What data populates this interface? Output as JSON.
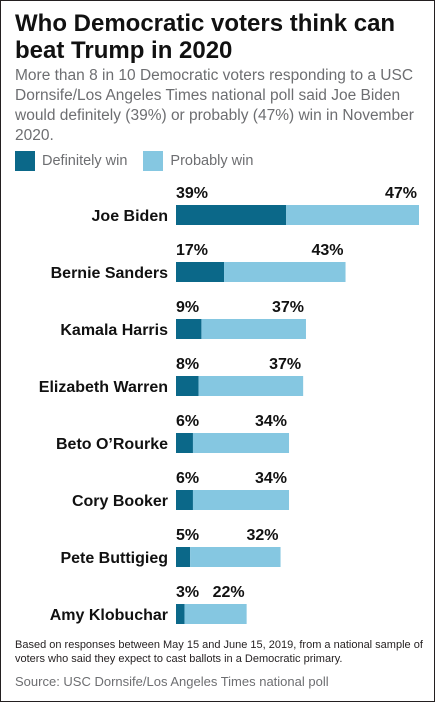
{
  "title": "Who Democratic voters think can beat Trump in 2020",
  "subtitle": "More than 8 in 10 Democratic voters responding to a USC Dornsife/Los Angeles Times national poll said Joe Biden would definitely (39%) or probably (47%) win in November 2020.",
  "colors": {
    "definitely": "#0b6889",
    "probably": "#85c7e1"
  },
  "chart_data": {
    "type": "bar",
    "orientation": "horizontal",
    "stacked": true,
    "categories": [
      "Joe Biden",
      "Bernie Sanders",
      "Kamala Harris",
      "Elizabeth Warren",
      "Beto O’Rourke",
      "Cory Booker",
      "Pete Buttigieg",
      "Amy Klobuchar"
    ],
    "series": [
      {
        "name": "Definitely win",
        "values": [
          39,
          17,
          9,
          8,
          6,
          6,
          5,
          3
        ],
        "labels": [
          "39%",
          "17%",
          "9%",
          "8%",
          "6%",
          "6%",
          "5%",
          "3%"
        ]
      },
      {
        "name": "Probably win",
        "values": [
          47,
          43,
          37,
          37,
          34,
          34,
          32,
          22
        ],
        "labels": [
          "47%",
          "43%",
          "37%",
          "37%",
          "34%",
          "34%",
          "32%",
          "22%"
        ]
      }
    ],
    "xlim": [
      0,
      86
    ],
    "grid": false,
    "legend": "top-left"
  },
  "footer": {
    "note": "Based on responses between May 15 and June 15, 2019, from a national sample of voters who said they expect to cast ballots in a Democratic primary.",
    "source": "Source: USC Dornsife/Los Angeles Times national poll"
  }
}
